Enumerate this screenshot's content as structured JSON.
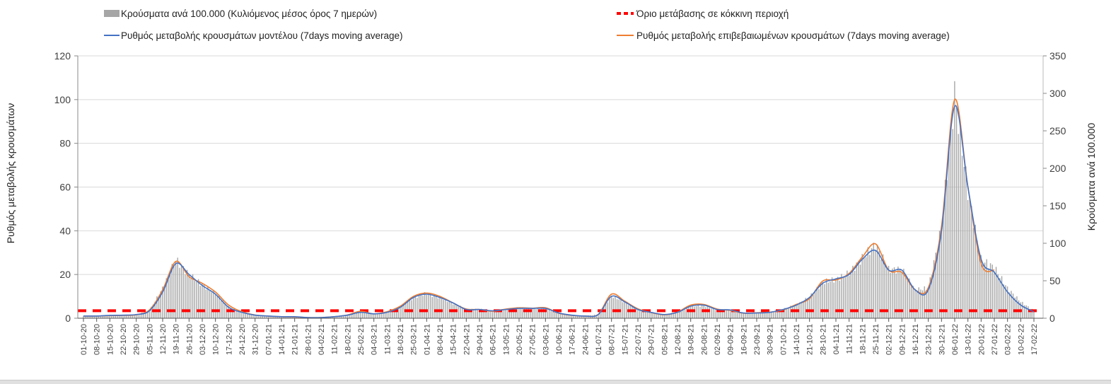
{
  "chart_data": {
    "type": "bar+line",
    "legend": {
      "bars": "Κρούσματα ανά 100.000 (Κυλιόμενος μέσος όρος 7 ημερών)",
      "threshold": "Όριο μετάβασης σε κόκκινη περιοχή",
      "model": "Ρυθμός μεταβολής κρουσμάτων μοντέλου (7days moving average)",
      "confirmed": "Ρυθμός μεταβολής επιβεβαιωμένων κρουσμάτων (7days moving average)"
    },
    "ylabel_left": "Ρυθμός μεταβολής κρουσμάτων",
    "ylabel_right": "Κρούσματα ανά 100.000",
    "ylim_left": [
      0,
      120
    ],
    "yticks_left": [
      "0",
      "20",
      "40",
      "60",
      "80",
      "100",
      "120"
    ],
    "ylim_right": [
      0,
      350
    ],
    "yticks_right": [
      "0",
      "50",
      "100",
      "150",
      "200",
      "250",
      "300",
      "350"
    ],
    "grid": true,
    "legend_position": "top",
    "colors": {
      "bars": "#a6a6a6",
      "model": "#4472c4",
      "confirmed": "#ed7d31",
      "threshold": "#ff0000"
    },
    "threshold_right_axis": 10,
    "categories": [
      "01-10-20",
      "08-10-20",
      "15-10-20",
      "22-10-20",
      "29-10-20",
      "05-11-20",
      "12-11-20",
      "19-11-20",
      "26-11-20",
      "03-12-20",
      "10-12-20",
      "17-12-20",
      "24-12-20",
      "31-12-20",
      "07-01-21",
      "14-01-21",
      "21-01-21",
      "28-01-21",
      "04-02-21",
      "11-02-21",
      "18-02-21",
      "25-02-21",
      "04-03-21",
      "11-03-21",
      "18-03-21",
      "25-03-21",
      "01-04-21",
      "08-04-21",
      "15-04-21",
      "22-04-21",
      "29-04-21",
      "06-05-21",
      "13-05-21",
      "20-05-21",
      "27-05-21",
      "03-06-21",
      "10-06-21",
      "17-06-21",
      "24-06-21",
      "01-07-21",
      "08-07-21",
      "15-07-21",
      "22-07-21",
      "29-07-21",
      "05-08-21",
      "12-08-21",
      "19-08-21",
      "26-08-21",
      "02-09-21",
      "09-09-21",
      "16-09-21",
      "23-09-21",
      "30-09-21",
      "07-10-21",
      "14-10-21",
      "21-10-21",
      "28-10-21",
      "04-11-21",
      "11-11-21",
      "18-11-21",
      "25-11-21",
      "02-12-21",
      "09-12-21",
      "16-12-21",
      "23-12-21",
      "30-12-21",
      "06-01-22",
      "13-01-22",
      "20-01-22",
      "27-01-22",
      "03-02-22",
      "10-02-22",
      "17-02-22"
    ],
    "bars_right_axis": [
      3,
      3,
      4,
      4,
      5,
      10,
      40,
      78,
      58,
      45,
      33,
      15,
      8,
      4,
      3,
      2,
      2,
      1,
      1,
      2,
      4,
      8,
      6,
      8,
      15,
      28,
      33,
      28,
      20,
      12,
      12,
      10,
      12,
      14,
      13,
      13,
      7,
      4,
      3,
      5,
      30,
      22,
      12,
      8,
      5,
      8,
      16,
      17,
      11,
      11,
      7,
      7,
      8,
      12,
      18,
      28,
      48,
      52,
      60,
      80,
      98,
      65,
      65,
      38,
      40,
      120,
      300,
      170,
      78,
      68,
      40,
      22,
      10
    ],
    "model_left_axis": [
      1,
      1,
      1.3,
      1.4,
      1.7,
      3.4,
      12,
      25,
      20,
      15,
      11,
      5,
      2.7,
      1.4,
      1,
      0.7,
      0.7,
      0.3,
      0.3,
      0.7,
      1.4,
      2.7,
      2,
      2.7,
      5,
      9.5,
      11,
      9.5,
      7,
      4,
      4,
      3.4,
      4,
      4.5,
      4.5,
      4.5,
      2.4,
      1.4,
      1,
      1.7,
      10,
      7.5,
      4,
      2.7,
      1.7,
      2.7,
      5.5,
      6,
      4,
      3.8,
      2.4,
      2.4,
      2.7,
      4,
      6,
      9.5,
      16,
      18,
      20,
      27,
      31,
      22,
      22,
      13,
      13,
      40,
      97,
      60,
      27,
      21,
      12,
      6,
      3
    ],
    "confirmed_left_axis": [
      1,
      1,
      1.2,
      1.3,
      1.6,
      3.8,
      13,
      26,
      19,
      16,
      12,
      6,
      3,
      1.5,
      1,
      0.7,
      0.6,
      0.3,
      0.3,
      0.7,
      1.5,
      3.2,
      2,
      3,
      5.5,
      10,
      11.5,
      10,
      7,
      4.2,
      4,
      3.2,
      4.2,
      4.8,
      4.6,
      4.8,
      2.3,
      1.3,
      1,
      1.8,
      11,
      7.8,
      4.3,
      2.6,
      1.6,
      2.8,
      6,
      6.3,
      4.2,
      3.6,
      2.3,
      2.5,
      2.8,
      3.8,
      6.3,
      9,
      17,
      17.5,
      20.5,
      28,
      34,
      22,
      21,
      13,
      14,
      42,
      100,
      60,
      25,
      22,
      null,
      null,
      null
    ]
  }
}
